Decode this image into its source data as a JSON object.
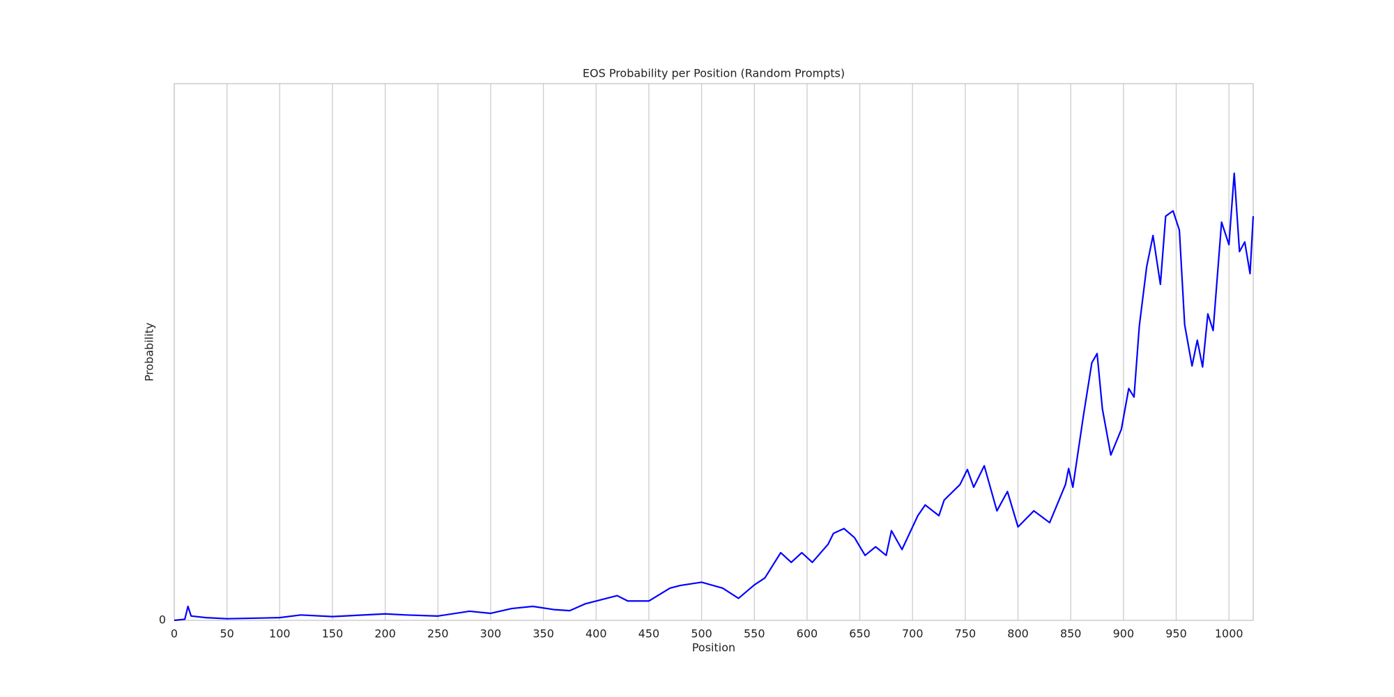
{
  "chart_data": {
    "type": "line",
    "title": "EOS Probability per Position (Random Prompts)",
    "x_label": "Position",
    "y_label": "Probability",
    "x": [
      0,
      10,
      13,
      16,
      30,
      50,
      100,
      120,
      150,
      200,
      220,
      250,
      280,
      300,
      320,
      340,
      360,
      375,
      390,
      400,
      420,
      430,
      450,
      470,
      480,
      500,
      520,
      535,
      550,
      560,
      575,
      585,
      595,
      605,
      620,
      625,
      635,
      645,
      655,
      665,
      675,
      680,
      690,
      705,
      712,
      725,
      730,
      745,
      752,
      758,
      768,
      780,
      790,
      800,
      815,
      830,
      845,
      848,
      852,
      862,
      870,
      875,
      880,
      888,
      898,
      905,
      910,
      915,
      922,
      928,
      935,
      940,
      947,
      953,
      958,
      965,
      970,
      975,
      980,
      985,
      993,
      1000,
      1005,
      1010,
      1015,
      1020,
      1023
    ],
    "series": [
      {
        "name": "EOS probability",
        "color": "#0000ff",
        "values": [
          0,
          0.002,
          0.026,
          0.008,
          0.005,
          0.003,
          0.005,
          0.01,
          0.007,
          0.012,
          0.01,
          0.008,
          0.017,
          0.013,
          0.022,
          0.026,
          0.02,
          0.018,
          0.031,
          0.036,
          0.046,
          0.036,
          0.036,
          0.06,
          0.065,
          0.071,
          0.06,
          0.041,
          0.066,
          0.079,
          0.126,
          0.108,
          0.126,
          0.108,
          0.142,
          0.162,
          0.171,
          0.154,
          0.121,
          0.137,
          0.121,
          0.167,
          0.132,
          0.195,
          0.215,
          0.195,
          0.224,
          0.253,
          0.281,
          0.248,
          0.288,
          0.204,
          0.24,
          0.174,
          0.204,
          0.182,
          0.253,
          0.283,
          0.248,
          0.381,
          0.48,
          0.497,
          0.394,
          0.308,
          0.356,
          0.432,
          0.416,
          0.548,
          0.659,
          0.717,
          0.626,
          0.753,
          0.763,
          0.727,
          0.551,
          0.474,
          0.522,
          0.472,
          0.571,
          0.54,
          0.742,
          0.7,
          0.833,
          0.687,
          0.705,
          0.646,
          0.753
        ]
      }
    ],
    "xlim": [
      0,
      1023
    ],
    "ylim": [
      0,
      1
    ],
    "xticks": [
      0,
      50,
      100,
      150,
      200,
      250,
      300,
      350,
      400,
      450,
      500,
      550,
      600,
      650,
      700,
      750,
      800,
      850,
      900,
      950,
      1000
    ],
    "yticks": [
      0
    ],
    "grid": "x"
  }
}
